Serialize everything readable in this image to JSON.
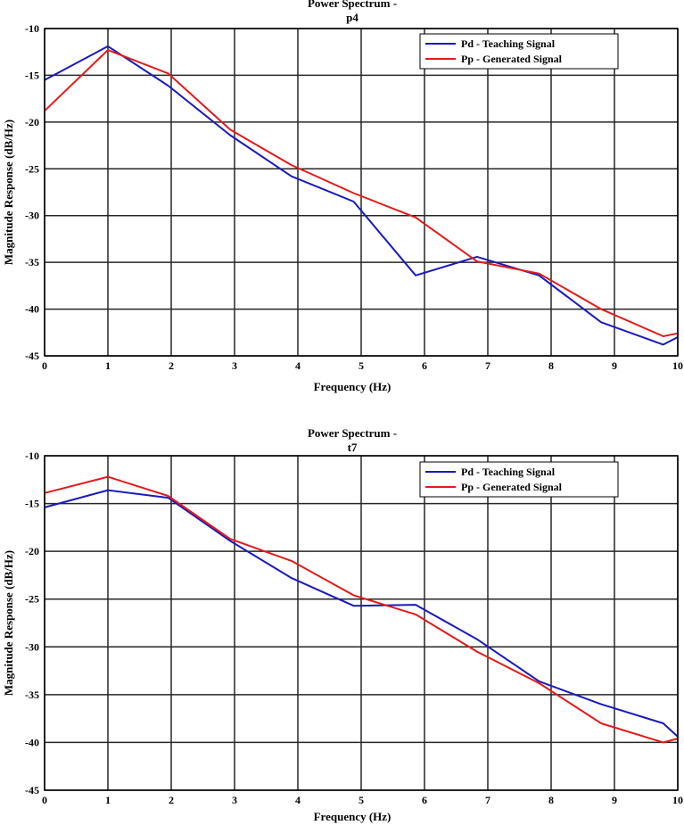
{
  "chart_data": [
    {
      "type": "line",
      "title": [
        "Power Spectrum -",
        "p4"
      ],
      "xlabel": "Frequency (Hz)",
      "ylabel": "Magnitude Response (dB/Hz)",
      "xlim": [
        0,
        10
      ],
      "ylim": [
        -45,
        -10
      ],
      "xticks": [
        0,
        1,
        2,
        3,
        4,
        5,
        6,
        7,
        8,
        9,
        10
      ],
      "yticks": [
        -10,
        -15,
        -20,
        -25,
        -30,
        -35,
        -40,
        -45
      ],
      "grid": true,
      "legend_position": "top-right",
      "series": [
        {
          "name": "Pd - Teaching Signal",
          "color": "#1a1aba",
          "x": [
            0,
            1,
            1.95,
            2.93,
            3.9,
            4.88,
            5.86,
            6.83,
            7.81,
            8.79,
            9.77,
            10
          ],
          "values": [
            -15.5,
            -11.9,
            -16.1,
            -21.4,
            -25.8,
            -28.5,
            -36.4,
            -34.4,
            -36.4,
            -41.4,
            -43.8,
            -43.0
          ]
        },
        {
          "name": "Pp - Generated Signal",
          "color": "#e31a1a",
          "x": [
            0,
            1,
            1.95,
            2.93,
            3.9,
            4.88,
            5.86,
            6.83,
            7.81,
            8.79,
            9.77,
            10
          ],
          "values": [
            -18.8,
            -12.3,
            -14.8,
            -20.8,
            -24.6,
            -27.6,
            -30.2,
            -34.9,
            -36.2,
            -40.0,
            -42.9,
            -42.6
          ]
        }
      ]
    },
    {
      "type": "line",
      "title": [
        "Power Spectrum -",
        "t7"
      ],
      "xlabel": "Frequency (Hz)",
      "ylabel": "Magnitude Response (dB/Hz)",
      "xlim": [
        0,
        10
      ],
      "ylim": [
        -45,
        -10
      ],
      "xticks": [
        0,
        1,
        2,
        3,
        4,
        5,
        6,
        7,
        8,
        9,
        10
      ],
      "yticks": [
        -10,
        -15,
        -20,
        -25,
        -30,
        -35,
        -40,
        -45
      ],
      "grid": true,
      "legend_position": "top-right",
      "series": [
        {
          "name": "Pd - Teaching Signal",
          "color": "#1a1aba",
          "x": [
            0,
            1,
            1.95,
            2.93,
            3.9,
            4.88,
            5.86,
            6.83,
            7.81,
            8.79,
            9.77,
            10
          ],
          "values": [
            -15.4,
            -13.6,
            -14.4,
            -18.9,
            -22.8,
            -25.7,
            -25.6,
            -29.2,
            -33.6,
            -36.0,
            -38.0,
            -39.4
          ]
        },
        {
          "name": "Pp - Generated Signal",
          "color": "#e31a1a",
          "x": [
            0,
            1,
            1.95,
            2.93,
            3.9,
            4.88,
            5.86,
            6.83,
            7.81,
            8.79,
            9.77,
            10
          ],
          "values": [
            -13.9,
            -12.2,
            -14.2,
            -18.7,
            -21.0,
            -24.6,
            -26.6,
            -30.5,
            -33.8,
            -38.0,
            -40.0,
            -39.6
          ]
        }
      ]
    }
  ]
}
